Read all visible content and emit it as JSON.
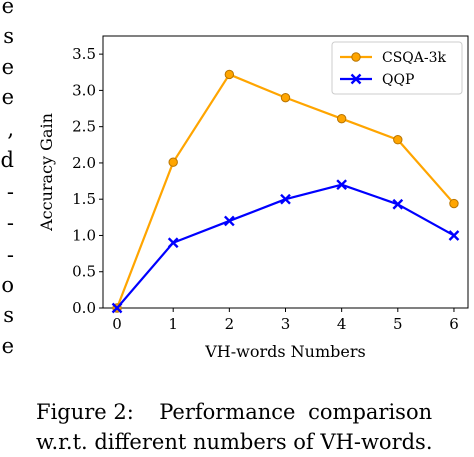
{
  "side_text": [
    "e",
    "s",
    "e",
    "e",
    ",",
    "d",
    "-",
    "-",
    "-",
    "o",
    "s",
    "e"
  ],
  "caption": {
    "line1_label": "Figure 2:",
    "line1_text": "Performance comparison",
    "line2_text": "w.r.t. different numbers of VH-words."
  },
  "chart_data": {
    "type": "line",
    "xlabel": "VH-words Numbers",
    "ylabel": "Accuracy Gain",
    "x": [
      0,
      1,
      2,
      3,
      4,
      5,
      6
    ],
    "xlim": [
      -0.25,
      6.25
    ],
    "ylim": [
      0.0,
      3.75
    ],
    "xticks": [
      "0",
      "1",
      "2",
      "3",
      "4",
      "5",
      "6"
    ],
    "yticks": [
      "0.0",
      "0.5",
      "1.0",
      "1.5",
      "2.0",
      "2.5",
      "3.0",
      "3.5"
    ],
    "grid": false,
    "legend_position": "top-right",
    "series": [
      {
        "name": "CSQA-3k",
        "values": [
          0.0,
          2.01,
          3.22,
          2.9,
          2.61,
          2.32,
          1.44
        ],
        "color": "#FFA500",
        "marker": "circle"
      },
      {
        "name": "QQP",
        "values": [
          0.0,
          0.9,
          1.2,
          1.5,
          1.7,
          1.43,
          1.0
        ],
        "color": "#0000FF",
        "marker": "x"
      }
    ]
  }
}
